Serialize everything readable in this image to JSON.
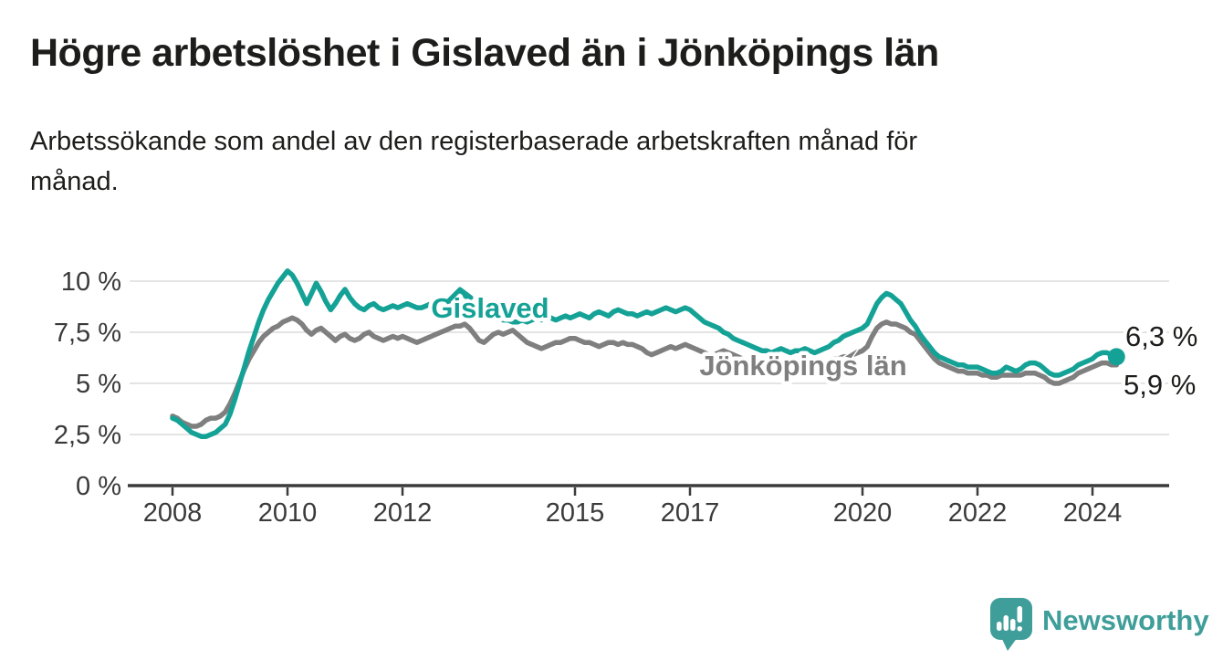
{
  "header": {
    "title": "Högre arbetslöshet i Gislaved än i Jönköpings län",
    "subtitle": "Arbetssökande som andel av den registerbaserade arbetskraften månad för\nmånad."
  },
  "chart_data": {
    "type": "line",
    "title": "Högre arbetslöshet i Gislaved än i Jönköpings län",
    "subtitle": "Arbetssökande som andel av den registerbaserade arbetskraften månad för månad.",
    "x_unit": "month",
    "x_range": {
      "start": "2008-01",
      "end": "2024-06"
    },
    "x_axis": {
      "ticks": [
        2008,
        2010,
        2012,
        2015,
        2017,
        2020,
        2022,
        2024
      ],
      "tick_labels": [
        "2008",
        "2010",
        "2012",
        "2015",
        "2017",
        "2020",
        "2022",
        "2024"
      ]
    },
    "y_axis": {
      "ticks": [
        0,
        2.5,
        5,
        7.5,
        10
      ],
      "tick_labels": [
        "0 %",
        "2,5 %",
        "5 %",
        "7,5 %",
        "10 %"
      ],
      "ylim": [
        0,
        11
      ]
    },
    "grid": true,
    "legend": "inline-labels",
    "series": [
      {
        "name": "Gislaved",
        "inline_label": "Gislaved",
        "end_label": "6,3 %",
        "end_value": 6.3,
        "color": "#15a296",
        "end_dot": true,
        "values": [
          3.3,
          3.2,
          3.0,
          2.8,
          2.6,
          2.5,
          2.4,
          2.4,
          2.5,
          2.6,
          2.8,
          3.0,
          3.5,
          4.2,
          5.0,
          5.8,
          6.6,
          7.3,
          8.0,
          8.6,
          9.1,
          9.5,
          9.9,
          10.2,
          10.5,
          10.3,
          9.9,
          9.4,
          8.9,
          9.4,
          9.9,
          9.5,
          9.0,
          8.6,
          8.9,
          9.3,
          9.6,
          9.2,
          8.9,
          8.7,
          8.6,
          8.8,
          8.9,
          8.7,
          8.6,
          8.7,
          8.8,
          8.7,
          8.8,
          8.9,
          8.8,
          8.7,
          8.7,
          8.8,
          8.9,
          8.8,
          8.7,
          8.8,
          9.0,
          9.2,
          9.4,
          9.3,
          9.1,
          8.9,
          8.7,
          8.5,
          8.4,
          8.3,
          8.2,
          8.1,
          8.1,
          8.0,
          8.0,
          8.1,
          8.0,
          8.1,
          8.2,
          8.1,
          8.3,
          8.2,
          8.1,
          8.2,
          8.3,
          8.2,
          8.3,
          8.4,
          8.3,
          8.2,
          8.4,
          8.5,
          8.4,
          8.3,
          8.5,
          8.6,
          8.5,
          8.4,
          8.4,
          8.3,
          8.4,
          8.5,
          8.4,
          8.5,
          8.6,
          8.7,
          8.6,
          8.5,
          8.6,
          8.7,
          8.6,
          8.4,
          8.2,
          8.0,
          7.9,
          7.8,
          7.7,
          7.5,
          7.4,
          7.2,
          7.1,
          7.0,
          6.9,
          6.8,
          6.7,
          6.6,
          6.6,
          6.5,
          6.6,
          6.7,
          6.6,
          6.5,
          6.6,
          6.6,
          6.7,
          6.6,
          6.5,
          6.6,
          6.7,
          6.8,
          7.0,
          7.1,
          7.3,
          7.4,
          7.5,
          7.6,
          7.7,
          7.9,
          8.4,
          8.9,
          9.2,
          9.4,
          9.3,
          9.1,
          8.9,
          8.5,
          8.1,
          7.8,
          7.4,
          7.1,
          6.8,
          6.5,
          6.3,
          6.2,
          6.1,
          6.0,
          5.9,
          5.9,
          5.8,
          5.8,
          5.8,
          5.7,
          5.6,
          5.5,
          5.5,
          5.6,
          5.8,
          5.7,
          5.6,
          5.7,
          5.9,
          6.0,
          6.0,
          5.9,
          5.7,
          5.5,
          5.4,
          5.4,
          5.5,
          5.6,
          5.7,
          5.9,
          6.0,
          6.1,
          6.2,
          6.4,
          6.5,
          6.5,
          6.4,
          6.3
        ]
      },
      {
        "name": "Jönköpings län",
        "inline_label": "Jönköpings län",
        "end_label": "5,9 %",
        "end_value": 5.9,
        "color": "#7f7f7f",
        "end_dot": false,
        "values": [
          3.4,
          3.3,
          3.1,
          3.0,
          2.9,
          2.9,
          3.0,
          3.2,
          3.3,
          3.3,
          3.4,
          3.6,
          4.0,
          4.5,
          5.1,
          5.7,
          6.2,
          6.6,
          7.0,
          7.3,
          7.5,
          7.7,
          7.8,
          8.0,
          8.1,
          8.2,
          8.1,
          7.9,
          7.6,
          7.4,
          7.6,
          7.7,
          7.5,
          7.3,
          7.1,
          7.3,
          7.4,
          7.2,
          7.1,
          7.2,
          7.4,
          7.5,
          7.3,
          7.2,
          7.1,
          7.2,
          7.3,
          7.2,
          7.3,
          7.2,
          7.1,
          7.0,
          7.1,
          7.2,
          7.3,
          7.4,
          7.5,
          7.6,
          7.7,
          7.8,
          7.8,
          7.9,
          7.7,
          7.4,
          7.1,
          7.0,
          7.2,
          7.4,
          7.5,
          7.4,
          7.5,
          7.6,
          7.4,
          7.2,
          7.0,
          6.9,
          6.8,
          6.7,
          6.8,
          6.9,
          7.0,
          7.0,
          7.1,
          7.2,
          7.2,
          7.1,
          7.0,
          7.0,
          6.9,
          6.8,
          6.9,
          7.0,
          7.0,
          6.9,
          7.0,
          6.9,
          6.9,
          6.8,
          6.7,
          6.5,
          6.4,
          6.5,
          6.6,
          6.7,
          6.8,
          6.7,
          6.8,
          6.9,
          6.8,
          6.7,
          6.6,
          6.5,
          6.4,
          6.4,
          6.5,
          6.6,
          6.5,
          6.4,
          6.3,
          6.2,
          6.1,
          6.0,
          5.9,
          5.8,
          5.8,
          5.7,
          5.8,
          5.8,
          5.7,
          5.8,
          5.9,
          5.9,
          6.0,
          5.9,
          5.9,
          6.0,
          6.0,
          6.1,
          6.2,
          6.2,
          6.3,
          6.3,
          6.4,
          6.5,
          6.6,
          6.8,
          7.3,
          7.7,
          7.9,
          8.0,
          7.9,
          7.9,
          7.8,
          7.7,
          7.5,
          7.4,
          7.1,
          6.8,
          6.5,
          6.2,
          6.0,
          5.9,
          5.8,
          5.7,
          5.6,
          5.6,
          5.5,
          5.5,
          5.5,
          5.4,
          5.4,
          5.3,
          5.3,
          5.4,
          5.4,
          5.4,
          5.4,
          5.4,
          5.5,
          5.5,
          5.5,
          5.4,
          5.3,
          5.1,
          5.0,
          5.0,
          5.1,
          5.2,
          5.3,
          5.5,
          5.6,
          5.7,
          5.8,
          5.9,
          6.0,
          6.0,
          5.9,
          5.9
        ]
      }
    ]
  },
  "colors": {
    "accent_teal": "#15a296",
    "series_gray": "#7f7f7f",
    "gridline": "#dcdcdc",
    "axis": "#3b3b3b",
    "text_dark": "#1d1d1b",
    "brand_teal": "#3f9e99"
  },
  "footer": {
    "brand": "Newsworthy",
    "logo_icon": "speech-bubble-bar-chart-icon"
  }
}
